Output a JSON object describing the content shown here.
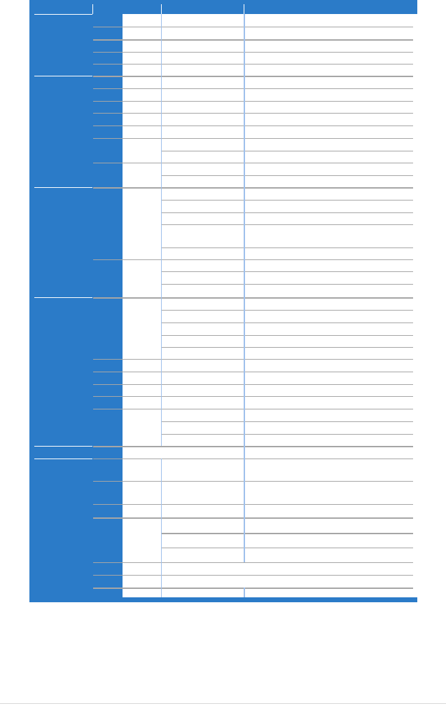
{
  "table": {
    "header": [
      "",
      "",
      "",
      ""
    ],
    "colors": {
      "frame": "#2b7bc8",
      "cell_background": "#ffffff",
      "row_divider": "#a6a6a6",
      "column_divider": "#9ec0ec",
      "group_divider": "#ffffff"
    }
  }
}
